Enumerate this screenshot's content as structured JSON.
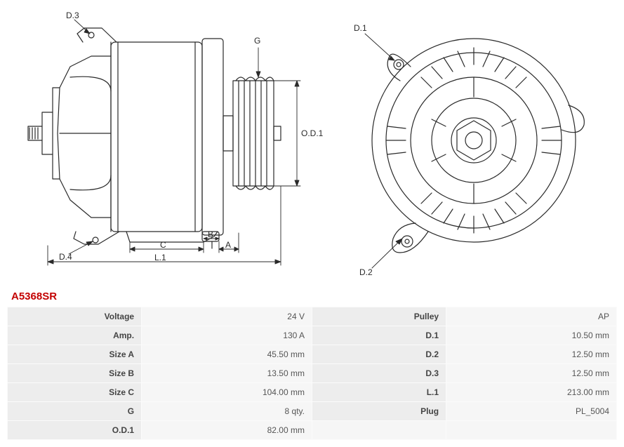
{
  "part_number": "A5368SR",
  "diagram": {
    "labels": {
      "d1": "D.1",
      "d2": "D.2",
      "d3": "D.3",
      "d4": "D.4",
      "g": "G",
      "od1": "O.D.1",
      "l1": "L.1",
      "a": "A",
      "b": "B",
      "c": "C"
    },
    "stroke_color": "#2a2a2a",
    "stroke_width": 1.2,
    "label_fontsize": 12,
    "background": "#ffffff"
  },
  "specs": [
    {
      "p1": "Voltage",
      "v1": "24 V",
      "p2": "Pulley",
      "v2": "AP"
    },
    {
      "p1": "Amp.",
      "v1": "130 A",
      "p2": "D.1",
      "v2": "10.50 mm"
    },
    {
      "p1": "Size A",
      "v1": "45.50 mm",
      "p2": "D.2",
      "v2": "12.50 mm"
    },
    {
      "p1": "Size B",
      "v1": "13.50 mm",
      "p2": "D.3",
      "v2": "12.50 mm"
    },
    {
      "p1": "Size C",
      "v1": "104.00 mm",
      "p2": "L.1",
      "v2": "213.00 mm"
    },
    {
      "p1": "G",
      "v1": "8 qty.",
      "p2": "Plug",
      "v2": "PL_5004"
    },
    {
      "p1": "O.D.1",
      "v1": "82.00 mm",
      "p2": "",
      "v2": ""
    }
  ],
  "colors": {
    "label_red": "#c30000",
    "text": "#555555",
    "cell_bg": "#f3f3f3",
    "cell_bg_light": "#f6f6f6",
    "param_bg": "#ededed",
    "page_bg": "#ffffff"
  }
}
